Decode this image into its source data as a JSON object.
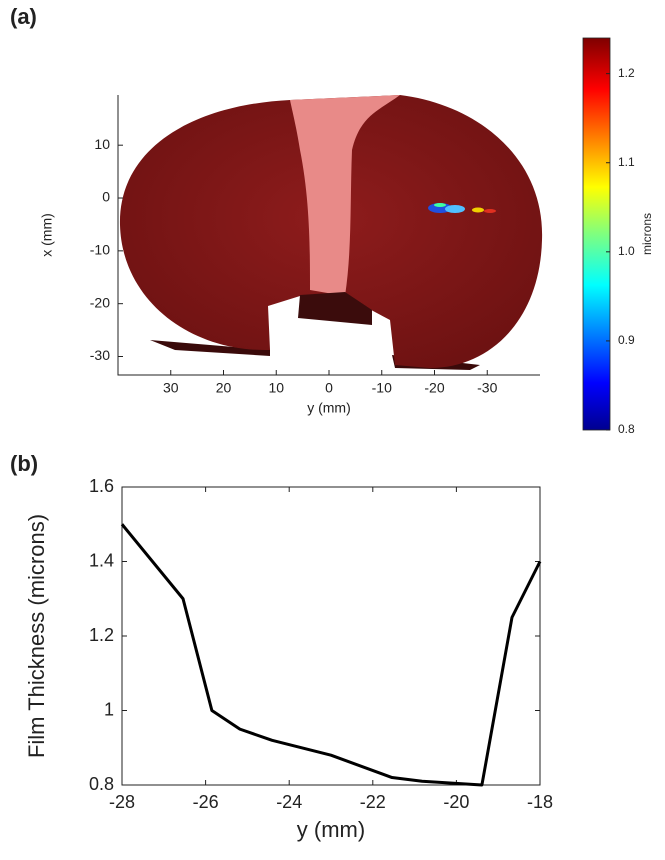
{
  "chart_data": [
    {
      "type": "surface",
      "panel_label": "(a)",
      "xlabel": "y (mm)",
      "ylabel": "x (mm)",
      "xlim": [
        40,
        -40
      ],
      "xticks": [
        30,
        20,
        10,
        0,
        -10,
        -20,
        -30
      ],
      "ylim": [
        -33.5,
        19.5
      ],
      "yticks": [
        10,
        0,
        -10,
        -20,
        -30
      ],
      "colorbar": {
        "label": "microns",
        "lim": [
          0.8,
          1.24
        ],
        "ticks": [
          0.8,
          0.9,
          {
            "value": 1,
            "label": "1.0"
          },
          1.1,
          1.2
        ]
      }
    },
    {
      "type": "line",
      "panel_label": "(b)",
      "xlabel": "y (mm)",
      "ylabel": "Film Thickness (microns)",
      "x": [
        -28,
        -26.54,
        -25.85,
        -25.18,
        -24.41,
        -23.0,
        -21.54,
        -20.82,
        -19.39,
        -18.67,
        -18
      ],
      "values": [
        1.5,
        1.3,
        1.0,
        0.95,
        0.92,
        0.88,
        0.82,
        0.81,
        0.8,
        1.25,
        1.4
      ],
      "color": "#000000",
      "xlim": [
        -28,
        -18
      ],
      "xticks": [
        -28,
        -26,
        -24,
        -22,
        -20,
        -18
      ],
      "ylim": [
        0.8,
        1.6
      ],
      "yticks": [
        0.8,
        1,
        1.2,
        1.4,
        1.6
      ]
    }
  ]
}
